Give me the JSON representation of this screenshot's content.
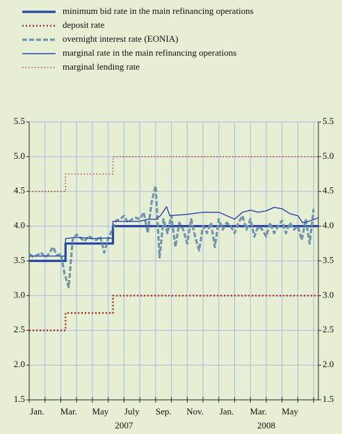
{
  "chart_data": {
    "type": "line",
    "categories_note_free": null,
    "xlim": [
      0,
      18.3
    ],
    "ylim": [
      1.5,
      5.5
    ],
    "yticks": [
      {
        "value": 1.5,
        "label": "1.5"
      },
      {
        "value": 2,
        "label": "2.0"
      },
      {
        "value": 2.5,
        "label": "2.5"
      },
      {
        "value": 3,
        "label": "3.0"
      },
      {
        "value": 3.5,
        "label": "3.5"
      },
      {
        "value": 4,
        "label": "4.0"
      },
      {
        "value": 4.5,
        "label": "4.5"
      },
      {
        "value": 5,
        "label": "5.0"
      },
      {
        "value": 5.5,
        "label": "5.5"
      }
    ],
    "xticks": [
      {
        "value": 0.5,
        "label": "Jan."
      },
      {
        "value": 2.5,
        "label": "Mar."
      },
      {
        "value": 4.5,
        "label": "May"
      },
      {
        "value": 6.5,
        "label": "July"
      },
      {
        "value": 8.5,
        "label": "Sep."
      },
      {
        "value": 10.5,
        "label": "Nov."
      },
      {
        "value": 12.5,
        "label": "Jan."
      },
      {
        "value": 14.5,
        "label": "Mar."
      },
      {
        "value": 16.5,
        "label": "May"
      }
    ],
    "xgrid": [
      0,
      1,
      2,
      3,
      4,
      5,
      6,
      7,
      8,
      9,
      10,
      11,
      12,
      13,
      14,
      15,
      16,
      17,
      18
    ],
    "x_group_labels": [
      {
        "value": 6,
        "label": "2007"
      },
      {
        "value": 15,
        "label": "2008"
      }
    ],
    "grid": true,
    "series": [
      {
        "name": "minimum bid rate in the main refinancing operations",
        "color": "#2a47a6",
        "line_style": "solid",
        "line_width": 3.2,
        "x": [
          0,
          2.3,
          2.3,
          5.3,
          5.3,
          18.3
        ],
        "values": [
          3.5,
          3.5,
          3.75,
          3.75,
          4,
          4
        ]
      },
      {
        "name": "deposit rate",
        "color": "#b0302a",
        "line_style": "dotted",
        "line_width": 2.6,
        "x": [
          0,
          2.3,
          2.3,
          5.3,
          5.3,
          18.3
        ],
        "values": [
          2.5,
          2.5,
          2.75,
          2.75,
          3,
          3
        ]
      },
      {
        "name": "overnight interest rate (EONIA)",
        "color": "#6f95ad",
        "line_style": "dashed",
        "line_width": 3.2,
        "x": [
          0,
          0.25,
          0.5,
          0.75,
          1,
          1.25,
          1.5,
          1.75,
          2,
          2.25,
          2.5,
          2.75,
          3,
          3.25,
          3.5,
          3.75,
          4,
          4.25,
          4.5,
          4.75,
          5,
          5.25,
          5.5,
          5.75,
          6,
          6.25,
          6.5,
          6.75,
          7,
          7.25,
          7.5,
          7.75,
          8,
          8.25,
          8.5,
          8.75,
          9,
          9.25,
          9.5,
          9.75,
          10,
          10.25,
          10.5,
          10.75,
          11,
          11.25,
          11.5,
          11.75,
          12,
          12.25,
          12.5,
          12.75,
          13,
          13.25,
          13.5,
          13.75,
          14,
          14.25,
          14.5,
          14.75,
          15,
          15.25,
          15.5,
          15.75,
          16,
          16.25,
          16.5,
          16.75,
          17,
          17.25,
          17.5,
          17.75,
          18
        ],
        "values": [
          3.6,
          3.56,
          3.58,
          3.62,
          3.55,
          3.6,
          3.7,
          3.58,
          3.6,
          3.3,
          3.12,
          3.8,
          3.88,
          3.83,
          3.78,
          3.86,
          3.82,
          3.8,
          3.85,
          3.62,
          3.82,
          3.95,
          4.08,
          4.1,
          4.15,
          4.05,
          4.1,
          4.12,
          4.1,
          4.2,
          3.9,
          4.35,
          4.58,
          3.55,
          4.1,
          3.9,
          4.15,
          3.7,
          4.05,
          3.95,
          3.75,
          4.1,
          3.85,
          3.65,
          4,
          3.9,
          4.05,
          3.7,
          4.1,
          3.95,
          4.05,
          4,
          3.9,
          4.05,
          4.15,
          3.95,
          4.1,
          3.85,
          4,
          3.95,
          3.85,
          4.05,
          3.9,
          4,
          4.08,
          3.9,
          4.05,
          3.95,
          4,
          3.8,
          4.1,
          3.75,
          4.25
        ]
      },
      {
        "name": "marginal rate in the main refinancing operations",
        "color": "#2a47a6",
        "line_style": "solid",
        "line_width": 1.4,
        "x": [
          0,
          2.3,
          2.3,
          3,
          4,
          5,
          5.3,
          5.3,
          6,
          7,
          7.5,
          8,
          8.3,
          8.7,
          8.9,
          10,
          11,
          11.5,
          12,
          12.5,
          13,
          13.5,
          14,
          14.5,
          15,
          15.5,
          16,
          16.5,
          17,
          17.3,
          17.7,
          18.3
        ],
        "values": [
          3.57,
          3.57,
          3.82,
          3.84,
          3.82,
          3.83,
          3.82,
          4.07,
          4.07,
          4.07,
          4.1,
          4.1,
          4.15,
          4.28,
          4.15,
          4.17,
          4.2,
          4.2,
          4.2,
          4.15,
          4.1,
          4.2,
          4.23,
          4.2,
          4.22,
          4.27,
          4.25,
          4.18,
          4.15,
          4.05,
          4.07,
          4.12
        ]
      },
      {
        "name": "marginal lending rate",
        "color": "#b0302a",
        "line_style": "dotted",
        "line_width": 1.4,
        "x": [
          0,
          2.3,
          2.3,
          5.3,
          5.3,
          18.3
        ],
        "values": [
          4.5,
          4.5,
          4.75,
          4.75,
          5,
          5
        ]
      }
    ]
  }
}
